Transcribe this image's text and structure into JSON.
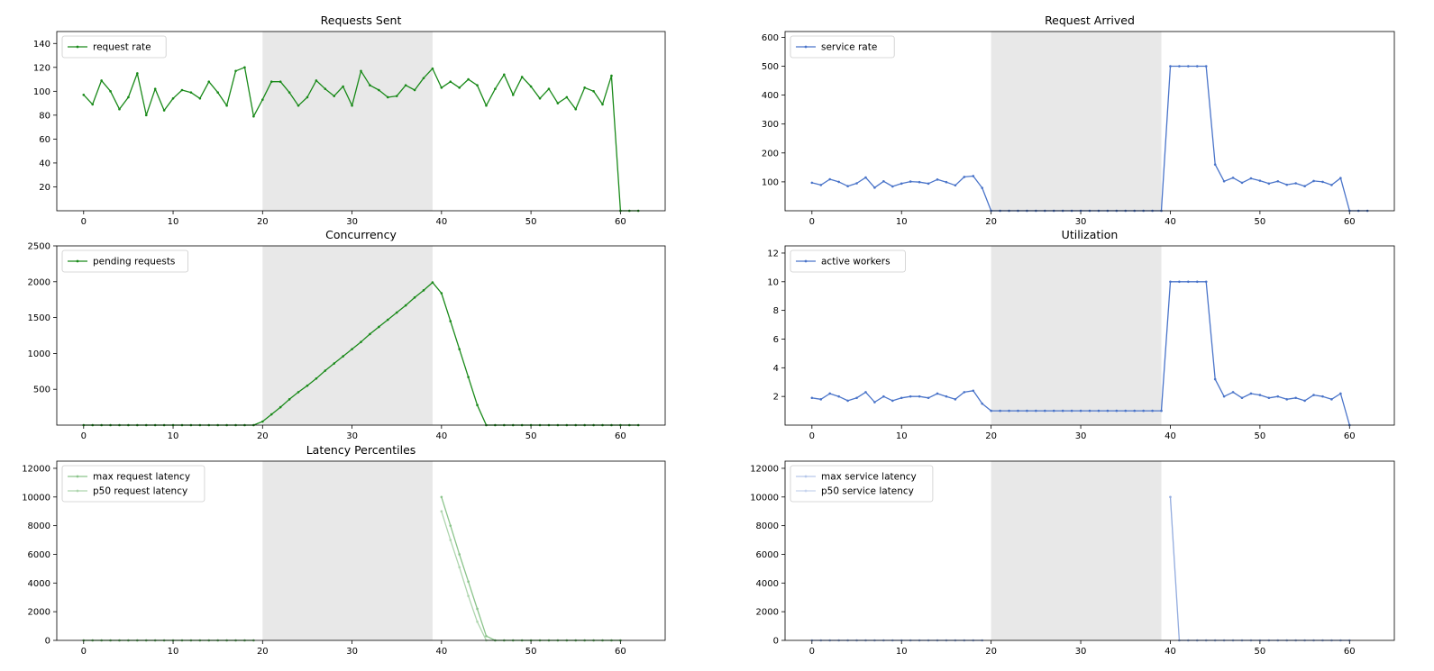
{
  "figure": {
    "shaded_region": [
      20,
      39
    ],
    "shade_color": "#e8e8e8",
    "green": "#1a8a1a",
    "blue": "#4a74c9"
  },
  "chart_data": [
    {
      "id": "requests-sent",
      "type": "line",
      "title": "Requests Sent",
      "xlim": [
        -3,
        65
      ],
      "ylim": [
        0,
        150
      ],
      "xticks": [
        0,
        10,
        20,
        30,
        40,
        50,
        60
      ],
      "yticks": [
        20,
        40,
        60,
        80,
        100,
        120,
        140
      ],
      "legend_loc": "upper-left",
      "series": [
        {
          "name": "request rate",
          "color": "#1a8a1a",
          "alpha": 1.0,
          "x": [
            0,
            1,
            2,
            3,
            4,
            5,
            6,
            7,
            8,
            9,
            10,
            11,
            12,
            13,
            14,
            15,
            16,
            17,
            18,
            19,
            20,
            21,
            22,
            23,
            24,
            25,
            26,
            27,
            28,
            29,
            30,
            31,
            32,
            33,
            34,
            35,
            36,
            37,
            38,
            39,
            40,
            41,
            42,
            43,
            44,
            45,
            46,
            47,
            48,
            49,
            50,
            51,
            52,
            53,
            54,
            55,
            56,
            57,
            58,
            59,
            60,
            61,
            62
          ],
          "y": [
            97,
            89,
            109,
            100,
            85,
            95,
            115,
            80,
            102,
            84,
            94,
            101,
            99,
            94,
            108,
            99,
            88,
            117,
            120,
            79,
            93,
            108,
            108,
            99,
            88,
            95,
            109,
            102,
            96,
            104,
            88,
            117,
            105,
            101,
            95,
            96,
            105,
            101,
            111,
            119,
            103,
            108,
            103,
            110,
            105,
            88,
            102,
            114,
            97,
            112,
            104,
            94,
            102,
            90,
            95,
            85,
            103,
            100,
            89,
            113,
            0,
            0,
            0
          ]
        }
      ]
    },
    {
      "id": "request-arrived",
      "type": "line",
      "title": "Request Arrived",
      "xlim": [
        -3,
        65
      ],
      "ylim": [
        0,
        620
      ],
      "xticks": [
        0,
        10,
        20,
        30,
        40,
        50,
        60
      ],
      "yticks": [
        100,
        200,
        300,
        400,
        500,
        600
      ],
      "legend_loc": "upper-left",
      "series": [
        {
          "name": "service rate",
          "color": "#4a74c9",
          "alpha": 1.0,
          "x": [
            0,
            1,
            2,
            3,
            4,
            5,
            6,
            7,
            8,
            9,
            10,
            11,
            12,
            13,
            14,
            15,
            16,
            17,
            18,
            19,
            20,
            21,
            22,
            23,
            24,
            25,
            26,
            27,
            28,
            29,
            30,
            31,
            32,
            33,
            34,
            35,
            36,
            37,
            38,
            39,
            40,
            41,
            42,
            43,
            44,
            45,
            46,
            47,
            48,
            49,
            50,
            51,
            52,
            53,
            54,
            55,
            56,
            57,
            58,
            59,
            60,
            61,
            62
          ],
          "y": [
            97,
            89,
            109,
            100,
            85,
            95,
            115,
            80,
            102,
            84,
            94,
            101,
            99,
            94,
            108,
            99,
            88,
            117,
            120,
            79,
            0,
            0,
            0,
            0,
            0,
            0,
            0,
            0,
            0,
            0,
            0,
            0,
            0,
            0,
            0,
            0,
            0,
            0,
            0,
            0,
            500,
            500,
            500,
            500,
            500,
            160,
            102,
            114,
            97,
            112,
            104,
            94,
            102,
            90,
            95,
            85,
            103,
            100,
            89,
            113,
            0,
            0,
            0
          ]
        }
      ]
    },
    {
      "id": "concurrency",
      "type": "line",
      "title": "Concurrency",
      "xlim": [
        -3,
        65
      ],
      "ylim": [
        0,
        2500
      ],
      "xticks": [
        0,
        10,
        20,
        30,
        40,
        50,
        60
      ],
      "yticks": [
        500,
        1000,
        1500,
        2000,
        2500
      ],
      "legend_loc": "upper-left",
      "series": [
        {
          "name": "pending requests",
          "color": "#1a8a1a",
          "alpha": 1.0,
          "x": [
            0,
            1,
            2,
            3,
            4,
            5,
            6,
            7,
            8,
            9,
            10,
            11,
            12,
            13,
            14,
            15,
            16,
            17,
            18,
            19,
            20,
            21,
            22,
            23,
            24,
            25,
            26,
            27,
            28,
            29,
            30,
            31,
            32,
            33,
            34,
            35,
            36,
            37,
            38,
            39,
            40,
            41,
            42,
            43,
            44,
            45,
            46,
            47,
            48,
            49,
            50,
            51,
            52,
            53,
            54,
            55,
            56,
            57,
            58,
            59,
            60,
            61,
            62
          ],
          "y": [
            0,
            0,
            0,
            0,
            0,
            0,
            0,
            0,
            0,
            0,
            0,
            0,
            0,
            0,
            0,
            0,
            0,
            0,
            0,
            0,
            50,
            150,
            250,
            360,
            460,
            550,
            650,
            760,
            860,
            960,
            1060,
            1160,
            1270,
            1370,
            1470,
            1570,
            1670,
            1780,
            1880,
            1990,
            1840,
            1450,
            1060,
            670,
            280,
            0,
            0,
            0,
            0,
            0,
            0,
            0,
            0,
            0,
            0,
            0,
            0,
            0,
            0,
            0,
            0,
            0,
            0
          ]
        }
      ]
    },
    {
      "id": "utilization",
      "type": "line",
      "title": "Utilization",
      "xlim": [
        -3,
        65
      ],
      "ylim": [
        0,
        12.5
      ],
      "xticks": [
        0,
        10,
        20,
        30,
        40,
        50,
        60
      ],
      "yticks": [
        2,
        4,
        6,
        8,
        10,
        12
      ],
      "legend_loc": "upper-left",
      "series": [
        {
          "name": "active workers",
          "color": "#4a74c9",
          "alpha": 1.0,
          "x": [
            0,
            1,
            2,
            3,
            4,
            5,
            6,
            7,
            8,
            9,
            10,
            11,
            12,
            13,
            14,
            15,
            16,
            17,
            18,
            19,
            20,
            21,
            22,
            23,
            24,
            25,
            26,
            27,
            28,
            29,
            30,
            31,
            32,
            33,
            34,
            35,
            36,
            37,
            38,
            39,
            40,
            41,
            42,
            43,
            44,
            45,
            46,
            47,
            48,
            49,
            50,
            51,
            52,
            53,
            54,
            55,
            56,
            57,
            58,
            59,
            60
          ],
          "y": [
            1.9,
            1.8,
            2.2,
            2.0,
            1.7,
            1.9,
            2.3,
            1.6,
            2.0,
            1.7,
            1.9,
            2.0,
            2.0,
            1.9,
            2.2,
            2.0,
            1.8,
            2.3,
            2.4,
            1.5,
            1,
            1,
            1,
            1,
            1,
            1,
            1,
            1,
            1,
            1,
            1,
            1,
            1,
            1,
            1,
            1,
            1,
            1,
            1,
            1,
            10,
            10,
            10,
            10,
            10,
            3.2,
            2.0,
            2.3,
            1.9,
            2.2,
            2.1,
            1.9,
            2.0,
            1.8,
            1.9,
            1.7,
            2.1,
            2.0,
            1.8,
            2.2,
            0
          ]
        }
      ]
    },
    {
      "id": "latency-left",
      "type": "line",
      "title": "Latency Percentiles",
      "xlim": [
        -3,
        65
      ],
      "ylim": [
        0,
        12500
      ],
      "xticks": [
        0,
        10,
        20,
        30,
        40,
        50,
        60
      ],
      "yticks": [
        0,
        2000,
        4000,
        6000,
        8000,
        10000,
        12000
      ],
      "legend_loc": "upper-left",
      "series": [
        {
          "name": "max request latency",
          "color": "#1a8a1a",
          "alpha": 0.5,
          "x": [
            0,
            1,
            2,
            3,
            4,
            5,
            6,
            7,
            8,
            9,
            10,
            11,
            12,
            13,
            14,
            15,
            16,
            17,
            18,
            19,
            null,
            40,
            41,
            42,
            43,
            44,
            45,
            46,
            47,
            48,
            49,
            50,
            51,
            52,
            53,
            54,
            55,
            56,
            57,
            58,
            59,
            60
          ],
          "y": [
            0,
            0,
            0,
            0,
            0,
            0,
            0,
            0,
            0,
            0,
            0,
            0,
            0,
            0,
            0,
            0,
            0,
            0,
            0,
            0,
            null,
            10000,
            8000,
            6000,
            4100,
            2200,
            300,
            0,
            0,
            0,
            0,
            0,
            0,
            0,
            0,
            0,
            0,
            0,
            0,
            0,
            0,
            0
          ]
        },
        {
          "name": "p50 request latency",
          "color": "#1a8a1a",
          "alpha": 0.35,
          "x": [
            0,
            1,
            2,
            3,
            4,
            5,
            6,
            7,
            8,
            9,
            10,
            11,
            12,
            13,
            14,
            15,
            16,
            17,
            18,
            19,
            null,
            40,
            41,
            42,
            43,
            44,
            45,
            46,
            47,
            48,
            49,
            50,
            51,
            52,
            53,
            54,
            55,
            56,
            57,
            58,
            59,
            60
          ],
          "y": [
            0,
            0,
            0,
            0,
            0,
            0,
            0,
            0,
            0,
            0,
            0,
            0,
            0,
            0,
            0,
            0,
            0,
            0,
            0,
            0,
            null,
            9000,
            7000,
            5100,
            3100,
            1300,
            0,
            0,
            0,
            0,
            0,
            0,
            0,
            0,
            0,
            0,
            0,
            0,
            0,
            0,
            0,
            0
          ]
        }
      ]
    },
    {
      "id": "latency-right",
      "type": "line",
      "title": "",
      "xlim": [
        -3,
        65
      ],
      "ylim": [
        0,
        12500
      ],
      "xticks": [
        0,
        10,
        20,
        30,
        40,
        50,
        60
      ],
      "yticks": [
        0,
        2000,
        4000,
        6000,
        8000,
        10000,
        12000
      ],
      "legend_loc": "upper-left",
      "series": [
        {
          "name": "max service latency",
          "color": "#4a74c9",
          "alpha": 0.4,
          "x": [
            0,
            1,
            2,
            3,
            4,
            5,
            6,
            7,
            8,
            9,
            10,
            11,
            12,
            13,
            14,
            15,
            16,
            17,
            18,
            19,
            null,
            40,
            41,
            42,
            43,
            44,
            45,
            46,
            47,
            48,
            49,
            50,
            51,
            52,
            53,
            54,
            55,
            56,
            57,
            58,
            59,
            60
          ],
          "y": [
            0,
            0,
            0,
            0,
            0,
            0,
            0,
            0,
            0,
            0,
            0,
            0,
            0,
            0,
            0,
            0,
            0,
            0,
            0,
            0,
            null,
            10000,
            0,
            0,
            0,
            0,
            0,
            0,
            0,
            0,
            0,
            0,
            0,
            0,
            0,
            0,
            0,
            0,
            0,
            0,
            0,
            0
          ]
        },
        {
          "name": "p50 service latency",
          "color": "#4a74c9",
          "alpha": 0.3,
          "x": [
            0,
            1,
            2,
            3,
            4,
            5,
            6,
            7,
            8,
            9,
            10,
            11,
            12,
            13,
            14,
            15,
            16,
            17,
            18,
            19,
            null,
            40,
            41,
            42,
            43,
            44,
            45,
            46,
            47,
            48,
            49,
            50,
            51,
            52,
            53,
            54,
            55,
            56,
            57,
            58,
            59,
            60
          ],
          "y": [
            0,
            0,
            0,
            0,
            0,
            0,
            0,
            0,
            0,
            0,
            0,
            0,
            0,
            0,
            0,
            0,
            0,
            0,
            0,
            0,
            null,
            10000,
            0,
            0,
            0,
            0,
            0,
            0,
            0,
            0,
            0,
            0,
            0,
            0,
            0,
            0,
            0,
            0,
            0,
            0,
            0,
            0
          ]
        }
      ]
    }
  ]
}
